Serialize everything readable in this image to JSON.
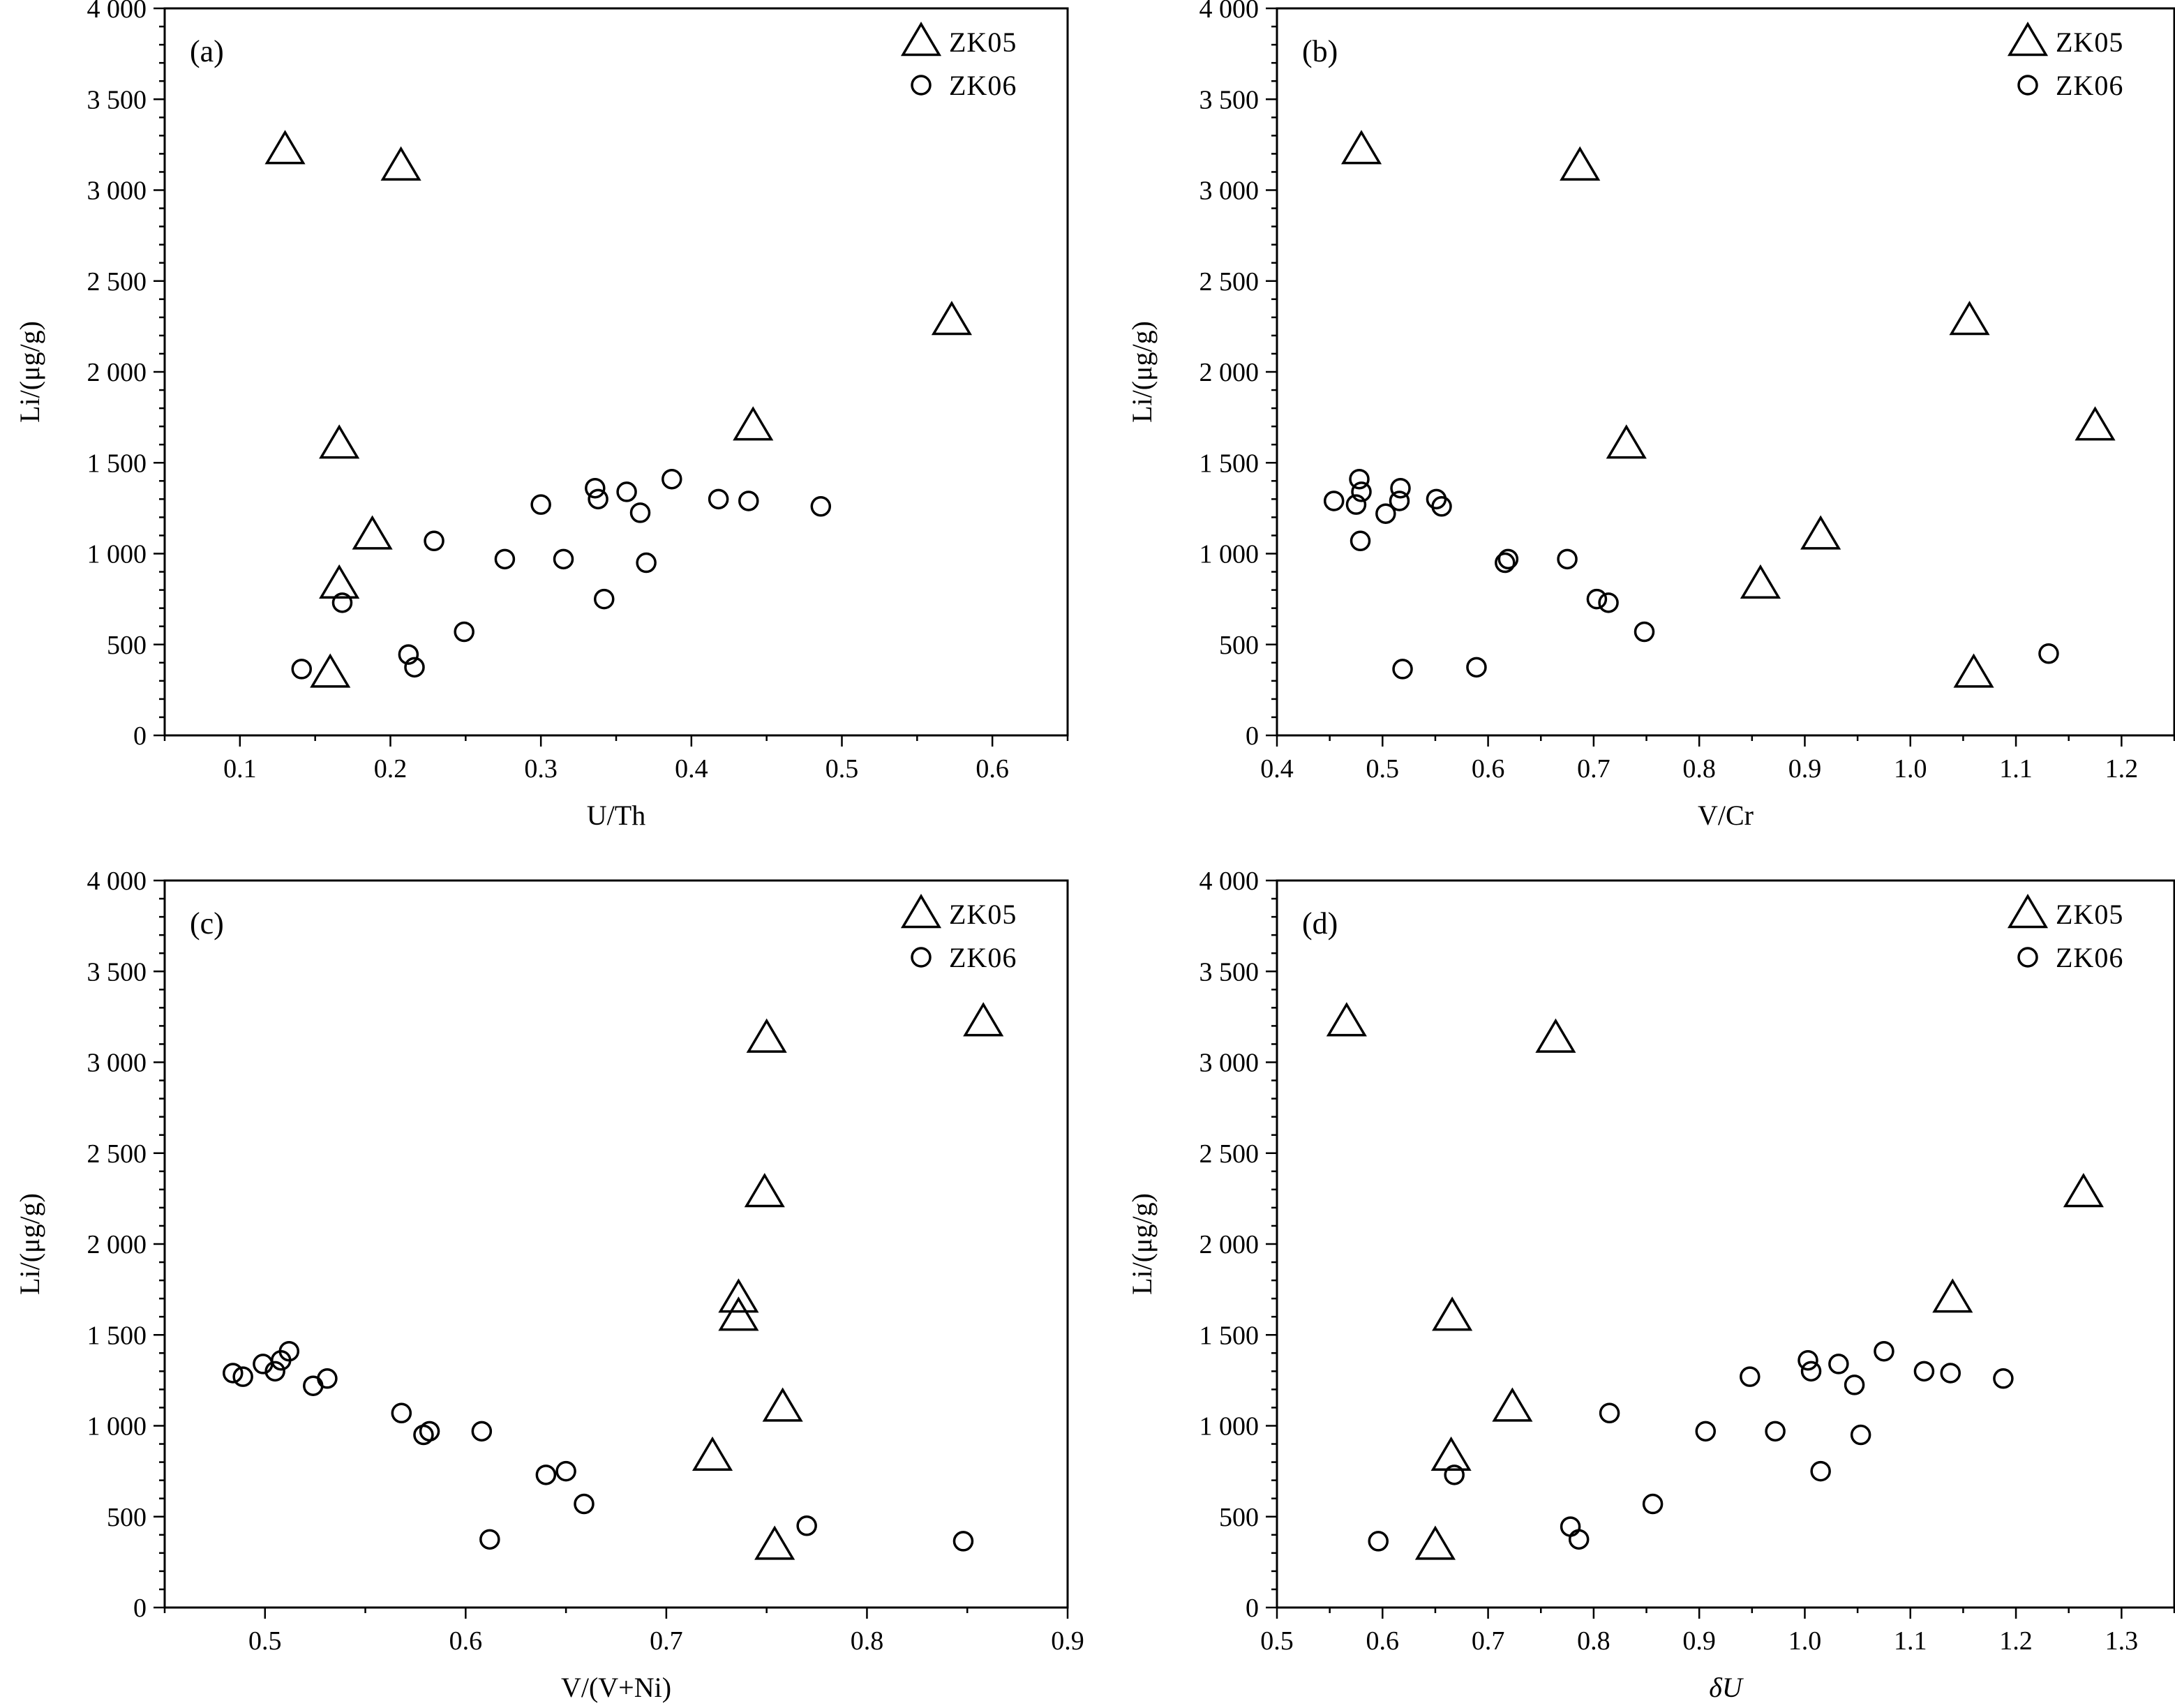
{
  "colors": {
    "marker": "#000000",
    "background": "#ffffff"
  },
  "chart_data": [
    {
      "panel_label": "(a)",
      "type": "scatter",
      "xlabel": "U/Th",
      "ylabel": "Li/(μg/g)",
      "xlim": [
        0.05,
        0.65
      ],
      "ylim": [
        0,
        4000
      ],
      "xticks": [
        0.1,
        0.2,
        0.3,
        0.4,
        0.5,
        0.6
      ],
      "xtick_labels": [
        "0.1",
        "0.2",
        "0.3",
        "0.4",
        "0.5",
        "0.6"
      ],
      "yticks": [
        0,
        500,
        1000,
        1500,
        2000,
        2500,
        3000,
        3500,
        4000
      ],
      "ytick_labels": [
        "0",
        "500",
        "1 000",
        "1 500",
        "2 000",
        "2 500",
        "3 000",
        "3 500",
        "4 000"
      ],
      "legend_position": "top-right",
      "series": [
        {
          "name": "ZK05",
          "marker": "triangle",
          "points": [
            [
              0.13,
              3220
            ],
            [
              0.207,
              3130
            ],
            [
              0.573,
              2280
            ],
            [
              0.441,
              1700
            ],
            [
              0.166,
              1600
            ],
            [
              0.188,
              1100
            ],
            [
              0.166,
              830
            ],
            [
              0.16,
              340
            ]
          ]
        },
        {
          "name": "ZK06",
          "marker": "circle",
          "points": [
            [
              0.141,
              365
            ],
            [
              0.168,
              730
            ],
            [
              0.212,
              445
            ],
            [
              0.216,
              375
            ],
            [
              0.229,
              1070
            ],
            [
              0.249,
              570
            ],
            [
              0.276,
              970
            ],
            [
              0.3,
              1270
            ],
            [
              0.315,
              970
            ],
            [
              0.336,
              1360
            ],
            [
              0.338,
              1300
            ],
            [
              0.342,
              750
            ],
            [
              0.357,
              1340
            ],
            [
              0.366,
              1225
            ],
            [
              0.37,
              950
            ],
            [
              0.387,
              1410
            ],
            [
              0.418,
              1300
            ],
            [
              0.438,
              1290
            ],
            [
              0.486,
              1260
            ]
          ]
        }
      ]
    },
    {
      "panel_label": "(b)",
      "type": "scatter",
      "xlabel": "V/Cr",
      "ylabel": "Li/(μg/g)",
      "xlim": [
        0.4,
        1.25
      ],
      "ylim": [
        0,
        4000
      ],
      "xticks": [
        0.4,
        0.5,
        0.6,
        0.7,
        0.8,
        0.9,
        1.0,
        1.1,
        1.2
      ],
      "xtick_labels": [
        "0.4",
        "0.5",
        "0.6",
        "0.7",
        "0.8",
        "0.9",
        "1.0",
        "1.1",
        "1.2"
      ],
      "yticks": [
        0,
        500,
        1000,
        1500,
        2000,
        2500,
        3000,
        3500,
        4000
      ],
      "ytick_labels": [
        "0",
        "500",
        "1 000",
        "1 500",
        "2 000",
        "2 500",
        "3 000",
        "3 500",
        "4 000"
      ],
      "legend_position": "top-right",
      "series": [
        {
          "name": "ZK05",
          "marker": "triangle",
          "points": [
            [
              0.48,
              3220
            ],
            [
              0.687,
              3130
            ],
            [
              1.056,
              2280
            ],
            [
              1.175,
              1700
            ],
            [
              0.731,
              1600
            ],
            [
              0.915,
              1100
            ],
            [
              0.858,
              830
            ],
            [
              1.06,
              340
            ]
          ]
        },
        {
          "name": "ZK06",
          "marker": "circle",
          "points": [
            [
              0.454,
              1290
            ],
            [
              0.475,
              1270
            ],
            [
              0.478,
              1410
            ],
            [
              0.48,
              1340
            ],
            [
              0.479,
              1070
            ],
            [
              0.503,
              1220
            ],
            [
              0.516,
              1290
            ],
            [
              0.517,
              1360
            ],
            [
              0.519,
              365
            ],
            [
              0.551,
              1300
            ],
            [
              0.556,
              1260
            ],
            [
              0.589,
              375
            ],
            [
              0.616,
              950
            ],
            [
              0.619,
              970
            ],
            [
              0.675,
              970
            ],
            [
              0.703,
              750
            ],
            [
              0.714,
              730
            ],
            [
              0.748,
              570
            ],
            [
              1.131,
              450
            ]
          ]
        }
      ]
    },
    {
      "panel_label": "(c)",
      "type": "scatter",
      "xlabel": "V/(V+Ni)",
      "ylabel": "Li/(μg/g)",
      "xlim": [
        0.45,
        0.9
      ],
      "ylim": [
        0,
        4000
      ],
      "xticks": [
        0.5,
        0.6,
        0.7,
        0.8,
        0.9
      ],
      "xtick_labels": [
        "0.5",
        "0.6",
        "0.7",
        "0.8",
        "0.9"
      ],
      "yticks": [
        0,
        500,
        1000,
        1500,
        2000,
        2500,
        3000,
        3500,
        4000
      ],
      "ytick_labels": [
        "0",
        "500",
        "1 000",
        "1 500",
        "2 000",
        "2 500",
        "3 000",
        "3 500",
        "4 000"
      ],
      "legend_position": "top-right",
      "series": [
        {
          "name": "ZK05",
          "marker": "triangle",
          "points": [
            [
              0.858,
              3220
            ],
            [
              0.75,
              3130
            ],
            [
              0.749,
              2280
            ],
            [
              0.736,
              1700
            ],
            [
              0.736,
              1600
            ],
            [
              0.758,
              1100
            ],
            [
              0.723,
              830
            ],
            [
              0.754,
              340
            ]
          ]
        },
        {
          "name": "ZK06",
          "marker": "circle",
          "points": [
            [
              0.484,
              1290
            ],
            [
              0.489,
              1270
            ],
            [
              0.499,
              1340
            ],
            [
              0.505,
              1300
            ],
            [
              0.508,
              1360
            ],
            [
              0.512,
              1410
            ],
            [
              0.524,
              1220
            ],
            [
              0.531,
              1260
            ],
            [
              0.568,
              1070
            ],
            [
              0.579,
              950
            ],
            [
              0.582,
              970
            ],
            [
              0.608,
              970
            ],
            [
              0.612,
              375
            ],
            [
              0.64,
              730
            ],
            [
              0.65,
              750
            ],
            [
              0.659,
              570
            ],
            [
              0.77,
              450
            ],
            [
              0.848,
              365
            ]
          ]
        }
      ]
    },
    {
      "panel_label": "(d)",
      "type": "scatter",
      "xlabel": "δU",
      "ylabel": "Li/(μg/g)",
      "xlim": [
        0.5,
        1.35
      ],
      "ylim": [
        0,
        4000
      ],
      "xticks": [
        0.5,
        0.6,
        0.7,
        0.8,
        0.9,
        1.0,
        1.1,
        1.2,
        1.3
      ],
      "xtick_labels": [
        "0.5",
        "0.6",
        "0.7",
        "0.8",
        "0.9",
        "1.0",
        "1.1",
        "1.2",
        "1.3"
      ],
      "yticks": [
        0,
        500,
        1000,
        1500,
        2000,
        2500,
        3000,
        3500,
        4000
      ],
      "ytick_labels": [
        "0",
        "500",
        "1 000",
        "1 500",
        "2 000",
        "2 500",
        "3 000",
        "3 500",
        "4 000"
      ],
      "legend_position": "top-right",
      "series": [
        {
          "name": "ZK05",
          "marker": "triangle",
          "points": [
            [
              0.566,
              3220
            ],
            [
              0.764,
              3130
            ],
            [
              1.264,
              2280
            ],
            [
              1.14,
              1700
            ],
            [
              0.666,
              1600
            ],
            [
              0.723,
              1100
            ],
            [
              0.665,
              830
            ],
            [
              0.65,
              340
            ]
          ]
        },
        {
          "name": "ZK06",
          "marker": "circle",
          "points": [
            [
              0.596,
              365
            ],
            [
              0.668,
              730
            ],
            [
              0.778,
              445
            ],
            [
              0.786,
              375
            ],
            [
              0.815,
              1070
            ],
            [
              0.856,
              570
            ],
            [
              0.906,
              970
            ],
            [
              0.948,
              1270
            ],
            [
              0.972,
              970
            ],
            [
              1.003,
              1360
            ],
            [
              1.006,
              1300
            ],
            [
              1.015,
              750
            ],
            [
              1.032,
              1340
            ],
            [
              1.047,
              1225
            ],
            [
              1.053,
              950
            ],
            [
              1.075,
              1410
            ],
            [
              1.113,
              1300
            ],
            [
              1.138,
              1290
            ],
            [
              1.188,
              1260
            ]
          ]
        }
      ]
    }
  ]
}
